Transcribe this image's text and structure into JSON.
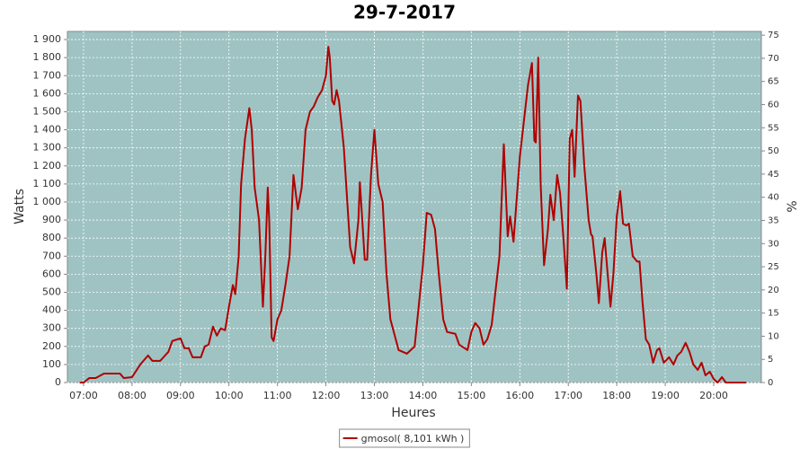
{
  "chart_data": {
    "type": "line",
    "title": "29-7-2017",
    "xlabel": "Heures",
    "ylabel": "Watts",
    "y2label": "%",
    "x": [
      6.92,
      7.0,
      7.12,
      7.25,
      7.42,
      7.5,
      7.75,
      7.83,
      8.0,
      8.17,
      8.33,
      8.42,
      8.58,
      8.75,
      8.83,
      9.0,
      9.08,
      9.17,
      9.25,
      9.42,
      9.5,
      9.58,
      9.67,
      9.75,
      9.83,
      9.92,
      10.0,
      10.08,
      10.13,
      10.2,
      10.25,
      10.33,
      10.42,
      10.47,
      10.53,
      10.62,
      10.7,
      10.75,
      10.8,
      10.83,
      10.88,
      10.92,
      11.0,
      11.08,
      11.17,
      11.25,
      11.33,
      11.42,
      11.5,
      11.58,
      11.67,
      11.75,
      11.83,
      11.92,
      12.0,
      12.05,
      12.08,
      12.13,
      12.17,
      12.22,
      12.27,
      12.37,
      12.5,
      12.58,
      12.67,
      12.7,
      12.75,
      12.8,
      12.85,
      12.93,
      13.0,
      13.08,
      13.17,
      13.25,
      13.33,
      13.5,
      13.67,
      13.83,
      14.0,
      14.08,
      14.17,
      14.25,
      14.33,
      14.42,
      14.5,
      14.67,
      14.75,
      14.92,
      15.0,
      15.08,
      15.17,
      15.25,
      15.33,
      15.42,
      15.58,
      15.67,
      15.72,
      15.75,
      15.8,
      15.87,
      16.0,
      16.17,
      16.25,
      16.3,
      16.33,
      16.38,
      16.43,
      16.5,
      16.58,
      16.63,
      16.7,
      16.77,
      16.83,
      16.9,
      16.97,
      17.03,
      17.08,
      17.13,
      17.2,
      17.25,
      17.33,
      17.42,
      17.47,
      17.5,
      17.58,
      17.63,
      17.7,
      17.75,
      17.8,
      17.87,
      17.93,
      18.0,
      18.07,
      18.13,
      18.2,
      18.25,
      18.33,
      18.42,
      18.47,
      18.53,
      18.6,
      18.67,
      18.75,
      18.83,
      18.88,
      18.97,
      19.08,
      19.17,
      19.25,
      19.33,
      19.42,
      19.5,
      19.58,
      19.67,
      19.75,
      19.83,
      19.92,
      20.0,
      20.08,
      20.17,
      20.25,
      20.67
    ],
    "series": [
      {
        "name": "gmosol( 8,101 kWh )",
        "color": "#b00000",
        "values": [
          0,
          0,
          25,
          25,
          50,
          50,
          50,
          25,
          30,
          100,
          150,
          120,
          120,
          170,
          230,
          245,
          190,
          190,
          140,
          140,
          200,
          210,
          310,
          260,
          300,
          290,
          420,
          540,
          490,
          700,
          1100,
          1350,
          1520,
          1400,
          1080,
          900,
          420,
          700,
          1080,
          900,
          250,
          230,
          350,
          400,
          550,
          700,
          1150,
          960,
          1080,
          1400,
          1500,
          1530,
          1580,
          1620,
          1700,
          1860,
          1800,
          1560,
          1540,
          1620,
          1560,
          1300,
          750,
          660,
          900,
          1110,
          900,
          680,
          680,
          1150,
          1400,
          1100,
          1000,
          600,
          350,
          180,
          160,
          200,
          650,
          940,
          930,
          850,
          600,
          350,
          280,
          270,
          210,
          180,
          280,
          330,
          300,
          210,
          240,
          320,
          700,
          1320,
          1000,
          810,
          920,
          780,
          1250,
          1650,
          1770,
          1340,
          1330,
          1800,
          1100,
          650,
          850,
          1040,
          900,
          1150,
          1050,
          800,
          520,
          1350,
          1400,
          1140,
          1590,
          1560,
          1200,
          900,
          820,
          810,
          600,
          440,
          720,
          800,
          640,
          420,
          600,
          920,
          1060,
          880,
          870,
          880,
          700,
          670,
          670,
          450,
          240,
          210,
          110,
          180,
          190,
          110,
          140,
          100,
          150,
          170,
          220,
          170,
          100,
          70,
          110,
          40,
          60,
          20,
          0,
          30,
          0,
          0
        ]
      }
    ],
    "xlim": [
      6.667,
      20.983
    ],
    "xticks": [
      {
        "value": 7,
        "label": "07:00"
      },
      {
        "value": 8,
        "label": "08:00"
      },
      {
        "value": 9,
        "label": "09:00"
      },
      {
        "value": 10,
        "label": "10:00"
      },
      {
        "value": 11,
        "label": "11:00"
      },
      {
        "value": 12,
        "label": "12:00"
      },
      {
        "value": 13,
        "label": "13:00"
      },
      {
        "value": 14,
        "label": "14:00"
      },
      {
        "value": 15,
        "label": "15:00"
      },
      {
        "value": 16,
        "label": "16:00"
      },
      {
        "value": 17,
        "label": "17:00"
      },
      {
        "value": 18,
        "label": "18:00"
      },
      {
        "value": 19,
        "label": "19:00"
      },
      {
        "value": 20,
        "label": "20:00"
      }
    ],
    "ylim": [
      0,
      1945
    ],
    "yticks": [
      0,
      100,
      200,
      300,
      400,
      500,
      600,
      700,
      800,
      900,
      {
        "value": 1000,
        "label": "1 000"
      },
      {
        "value": 1100,
        "label": "1 100"
      },
      {
        "value": 1200,
        "label": "1 200"
      },
      {
        "value": 1300,
        "label": "1 300"
      },
      {
        "value": 1400,
        "label": "1 400"
      },
      {
        "value": 1500,
        "label": "1 500"
      },
      {
        "value": 1600,
        "label": "1 600"
      },
      {
        "value": 1700,
        "label": "1 700"
      },
      {
        "value": 1800,
        "label": "1 800"
      },
      {
        "value": 1900,
        "label": "1 900"
      }
    ],
    "y2lim": [
      0,
      75.8
    ],
    "y2ticks": [
      0,
      5,
      10,
      15,
      20,
      25,
      30,
      35,
      40,
      45,
      50,
      55,
      60,
      65,
      70,
      75
    ],
    "grid": true,
    "legend": "bottom",
    "background": "#9fc3c3"
  }
}
